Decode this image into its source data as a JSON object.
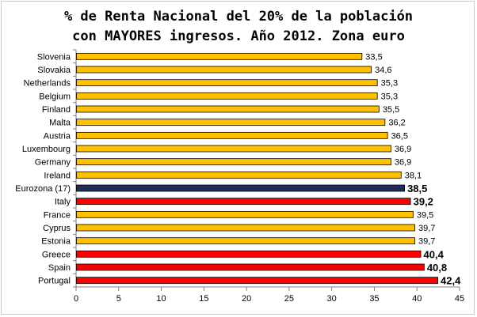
{
  "chart_data": {
    "type": "bar",
    "orientation": "horizontal",
    "title": [
      "% de Renta Nacional del 20% de la población",
      "con MAYORES ingresos. Año 2012. Zona euro"
    ],
    "categories": [
      "Slovenia",
      "Slovakia",
      "Netherlands",
      "Belgium",
      "Finland",
      "Malta",
      "Austria",
      "Luxembourg",
      "Germany",
      "Ireland",
      "Eurozona (17)",
      "Italy",
      "France",
      "Cyprus",
      "Estonia",
      "Greece",
      "Spain",
      "Portugal"
    ],
    "values": [
      33.5,
      34.6,
      35.3,
      35.3,
      35.5,
      36.2,
      36.5,
      36.9,
      36.9,
      38.1,
      38.5,
      39.2,
      39.5,
      39.7,
      39.7,
      40.4,
      40.8,
      42.4
    ],
    "value_labels": [
      "33,5",
      "34,6",
      "35,3",
      "35,3",
      "35,5",
      "36,2",
      "36,5",
      "36,9",
      "36,9",
      "38,1",
      "38,5",
      "39,2",
      "39,5",
      "39,7",
      "39,7",
      "40,4",
      "40,8",
      "42,4"
    ],
    "bar_colors": [
      "#FFC000",
      "#FFC000",
      "#FFC000",
      "#FFC000",
      "#FFC000",
      "#FFC000",
      "#FFC000",
      "#FFC000",
      "#FFC000",
      "#FFC000",
      "#1F2D5A",
      "#FF0000",
      "#FFC000",
      "#FFC000",
      "#FFC000",
      "#FF0000",
      "#FF0000",
      "#FF0000"
    ],
    "label_colors": [
      "#000000",
      "#000000",
      "#000000",
      "#000000",
      "#000000",
      "#000000",
      "#000000",
      "#000000",
      "#000000",
      "#000000",
      "#1F2D5A",
      "#C00000",
      "#000000",
      "#000000",
      "#000000",
      "#C00000",
      "#C00000",
      "#C00000"
    ],
    "emphasized": [
      false,
      false,
      false,
      false,
      false,
      false,
      false,
      false,
      false,
      false,
      true,
      true,
      false,
      false,
      false,
      true,
      true,
      true
    ],
    "xlim": [
      0,
      45
    ],
    "xticks": [
      0,
      5,
      10,
      15,
      20,
      25,
      30,
      35,
      40,
      45
    ],
    "grid": false,
    "legend": "none"
  }
}
